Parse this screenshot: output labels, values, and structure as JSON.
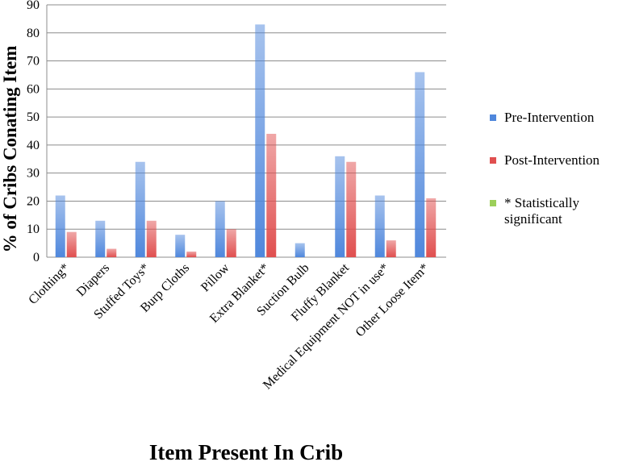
{
  "chart_data": {
    "type": "bar",
    "y_label": "% of Cribs Conating Item",
    "x_label": "Item Present In Crib",
    "categories": [
      "Clothing*",
      "Diapers",
      "Stuffed Toys*",
      "Burp Cloths",
      "Pillow",
      "Extra Blanket*",
      "Suction Bulb",
      "Fluffy Blanket",
      "Medical Equipment NOT in use*",
      "Other Loose Item*"
    ],
    "series": [
      {
        "name": "Pre-Intervention",
        "color": "#4f87dc",
        "values": [
          22,
          13,
          34,
          8,
          20,
          83,
          5,
          36,
          22,
          66
        ]
      },
      {
        "name": "Post-Intervention",
        "color": "#e04f4f",
        "values": [
          9,
          3,
          13,
          2,
          10,
          44,
          0,
          34,
          6,
          21
        ]
      },
      {
        "name": "* Statistically significant",
        "color": "#9ccf5a",
        "values": [
          null,
          null,
          null,
          null,
          null,
          null,
          null,
          null,
          null,
          null
        ]
      }
    ],
    "ylim": [
      0,
      90
    ],
    "yticks": [
      0,
      10,
      20,
      30,
      40,
      50,
      60,
      70,
      80,
      90
    ],
    "grid": true
  }
}
